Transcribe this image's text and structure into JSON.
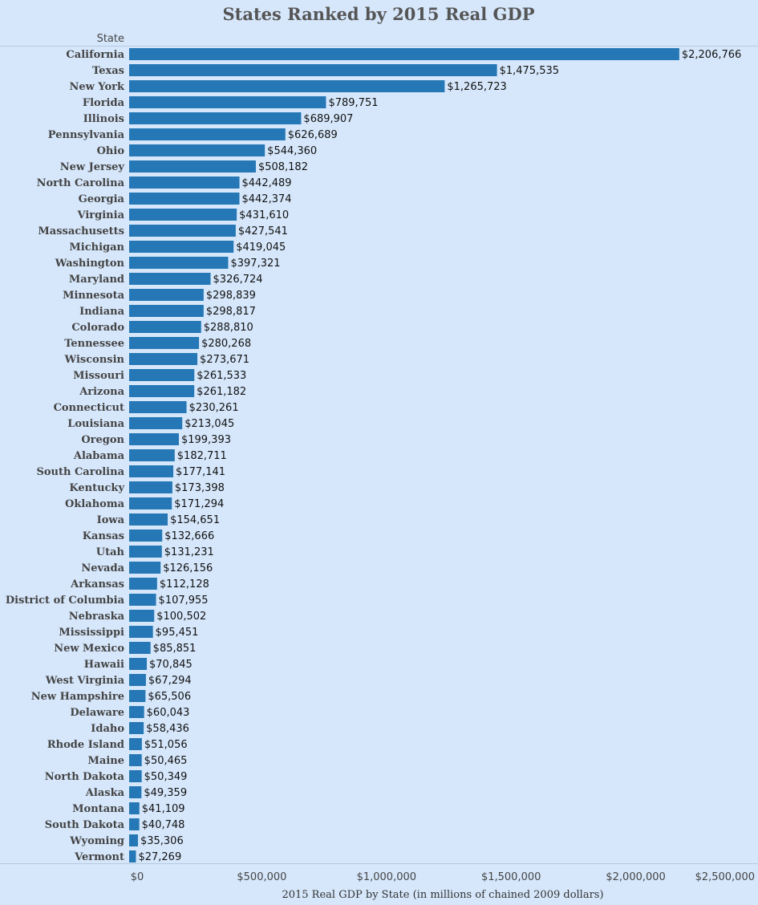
{
  "chart_data": {
    "type": "bar",
    "orientation": "horizontal",
    "title": "States Ranked by 2015 Real GDP",
    "row_header": "State",
    "xlabel": "2015 Real GDP by State (in millions of chained 2009 dollars)",
    "xlim": [
      0,
      2500000
    ],
    "x_ticks": [
      "$0",
      "$500,000",
      "$1,000,000",
      "$1,500,000",
      "$2,000,000",
      "$2,500,000"
    ],
    "bar_color": "#2577b5",
    "background_color": "#d6e7fb",
    "categories": [
      "California",
      "Texas",
      "New York",
      "Florida",
      "Illinois",
      "Pennsylvania",
      "Ohio",
      "New Jersey",
      "North Carolina",
      "Georgia",
      "Virginia",
      "Massachusetts",
      "Michigan",
      "Washington",
      "Maryland",
      "Minnesota",
      "Indiana",
      "Colorado",
      "Tennessee",
      "Wisconsin",
      "Missouri",
      "Arizona",
      "Connecticut",
      "Louisiana",
      "Oregon",
      "Alabama",
      "South Carolina",
      "Kentucky",
      "Oklahoma",
      "Iowa",
      "Kansas",
      "Utah",
      "Nevada",
      "Arkansas",
      "District of Columbia",
      "Nebraska",
      "Mississippi",
      "New Mexico",
      "Hawaii",
      "West Virginia",
      "New Hampshire",
      "Delaware",
      "Idaho",
      "Rhode Island",
      "Maine",
      "North Dakota",
      "Alaska",
      "Montana",
      "South Dakota",
      "Wyoming",
      "Vermont"
    ],
    "values": [
      2206766,
      1475535,
      1265723,
      789751,
      689907,
      626689,
      544360,
      508182,
      442489,
      442374,
      431610,
      427541,
      419045,
      397321,
      326724,
      298839,
      298817,
      288810,
      280268,
      273671,
      261533,
      261182,
      230261,
      213045,
      199393,
      182711,
      177141,
      173398,
      171294,
      154651,
      132666,
      131231,
      126156,
      112128,
      107955,
      100502,
      95451,
      85851,
      70845,
      67294,
      65506,
      60043,
      58436,
      51056,
      50465,
      50349,
      49359,
      41109,
      40748,
      35306,
      27269
    ],
    "value_labels": [
      "$2,206,766",
      "$1,475,535",
      "$1,265,723",
      "$789,751",
      "$689,907",
      "$626,689",
      "$544,360",
      "$508,182",
      "$442,489",
      "$442,374",
      "$431,610",
      "$427,541",
      "$419,045",
      "$397,321",
      "$326,724",
      "$298,839",
      "$298,817",
      "$288,810",
      "$280,268",
      "$273,671",
      "$261,533",
      "$261,182",
      "$230,261",
      "$213,045",
      "$199,393",
      "$182,711",
      "$177,141",
      "$173,398",
      "$171,294",
      "$154,651",
      "$132,666",
      "$131,231",
      "$126,156",
      "$112,128",
      "$107,955",
      "$100,502",
      "$95,451",
      "$85,851",
      "$70,845",
      "$67,294",
      "$65,506",
      "$60,043",
      "$58,436",
      "$51,056",
      "$50,465",
      "$50,349",
      "$49,359",
      "$41,109",
      "$40,748",
      "$35,306",
      "$27,269"
    ]
  }
}
